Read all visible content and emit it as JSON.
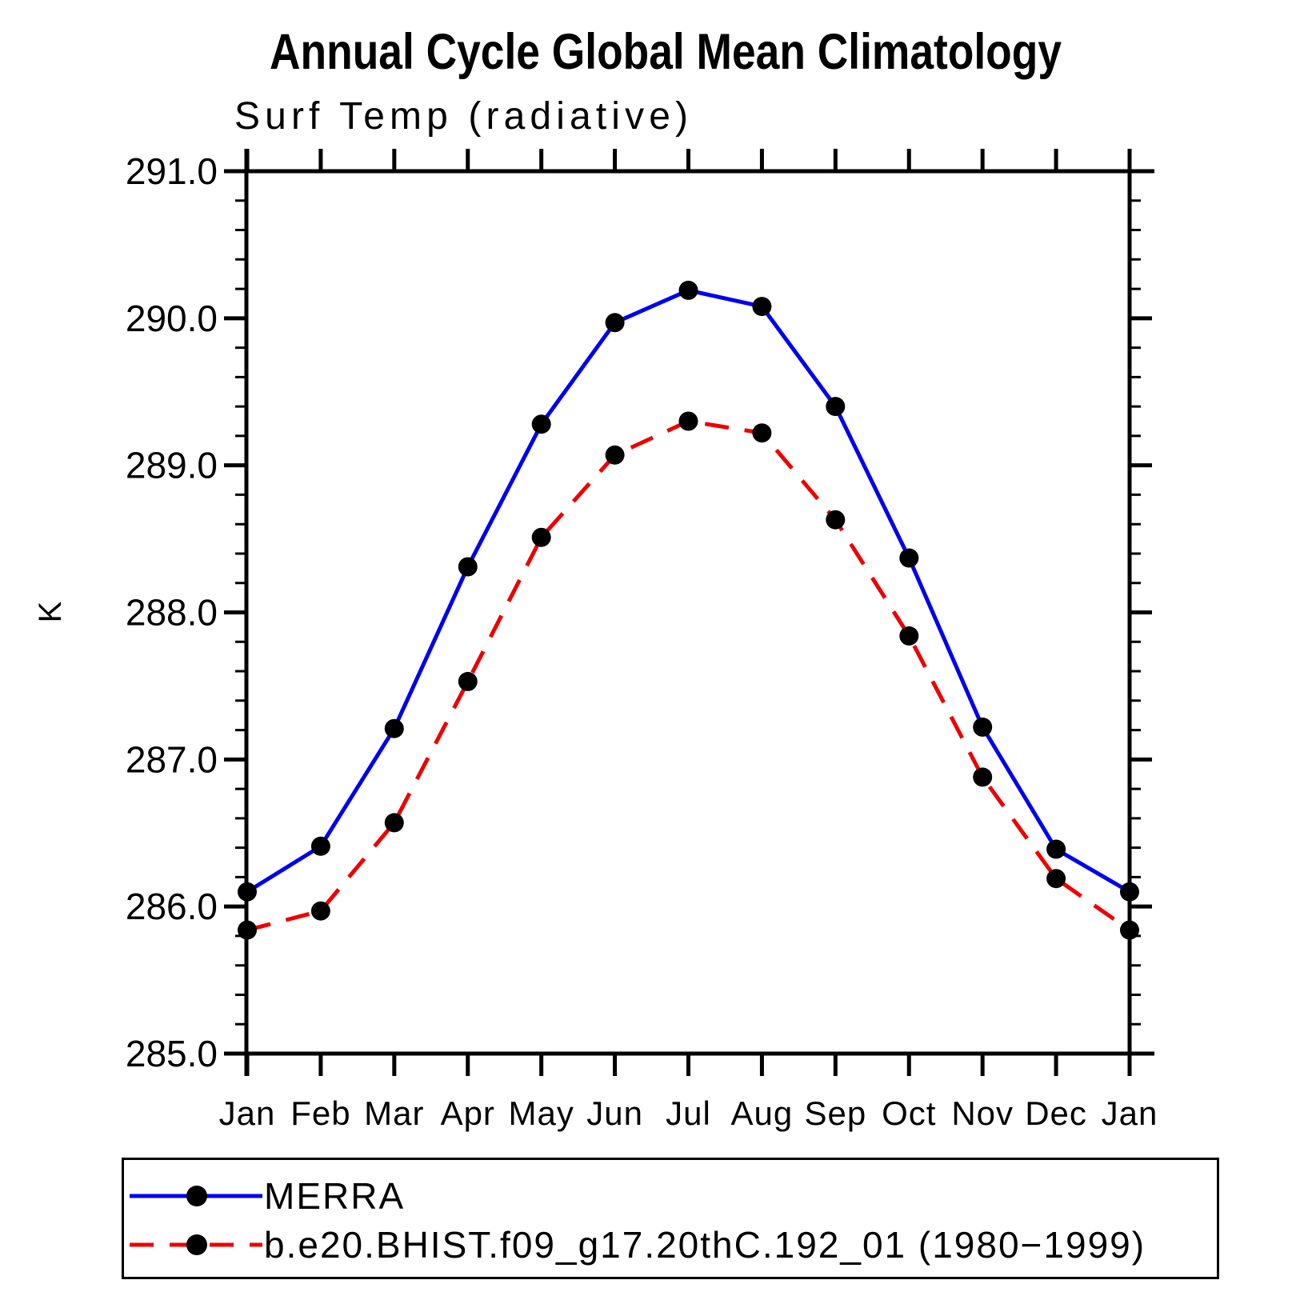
{
  "title": "Annual Cycle Global Mean Climatology",
  "chart_data": {
    "type": "line",
    "title": "Annual Cycle Global Mean Climatology",
    "subtitle": "Surf Temp (radiative)",
    "ylabel": "K",
    "xlabel": "",
    "categories": [
      "Jan",
      "Feb",
      "Mar",
      "Apr",
      "May",
      "Jun",
      "Jul",
      "Aug",
      "Sep",
      "Oct",
      "Nov",
      "Dec",
      "Jan"
    ],
    "ylim": [
      285.0,
      291.0
    ],
    "ytick_labels": [
      "285.0",
      "286.0",
      "287.0",
      "288.0",
      "289.0",
      "290.0",
      "291.0"
    ],
    "ytick_interval": 1.0,
    "minor_ytick_interval": 0.2,
    "grid": false,
    "legend_position": "bottom-left-box",
    "marker": "filled-circle",
    "marker_color": "#000000",
    "series": [
      {
        "name": "MERRA",
        "color": "#0000EE",
        "style": "solid",
        "values": [
          286.1,
          286.41,
          287.21,
          288.31,
          289.28,
          289.97,
          290.19,
          290.08,
          289.4,
          288.37,
          287.22,
          286.39,
          286.1
        ]
      },
      {
        "name": "b.e20.BHIST.f09_g17.20thC.192_01 (1980−1999)",
        "color": "#EE0000",
        "style": "dashed",
        "values": [
          285.84,
          285.97,
          286.57,
          287.53,
          288.51,
          289.07,
          289.3,
          289.22,
          288.63,
          287.84,
          286.88,
          286.19,
          285.84
        ]
      }
    ]
  }
}
